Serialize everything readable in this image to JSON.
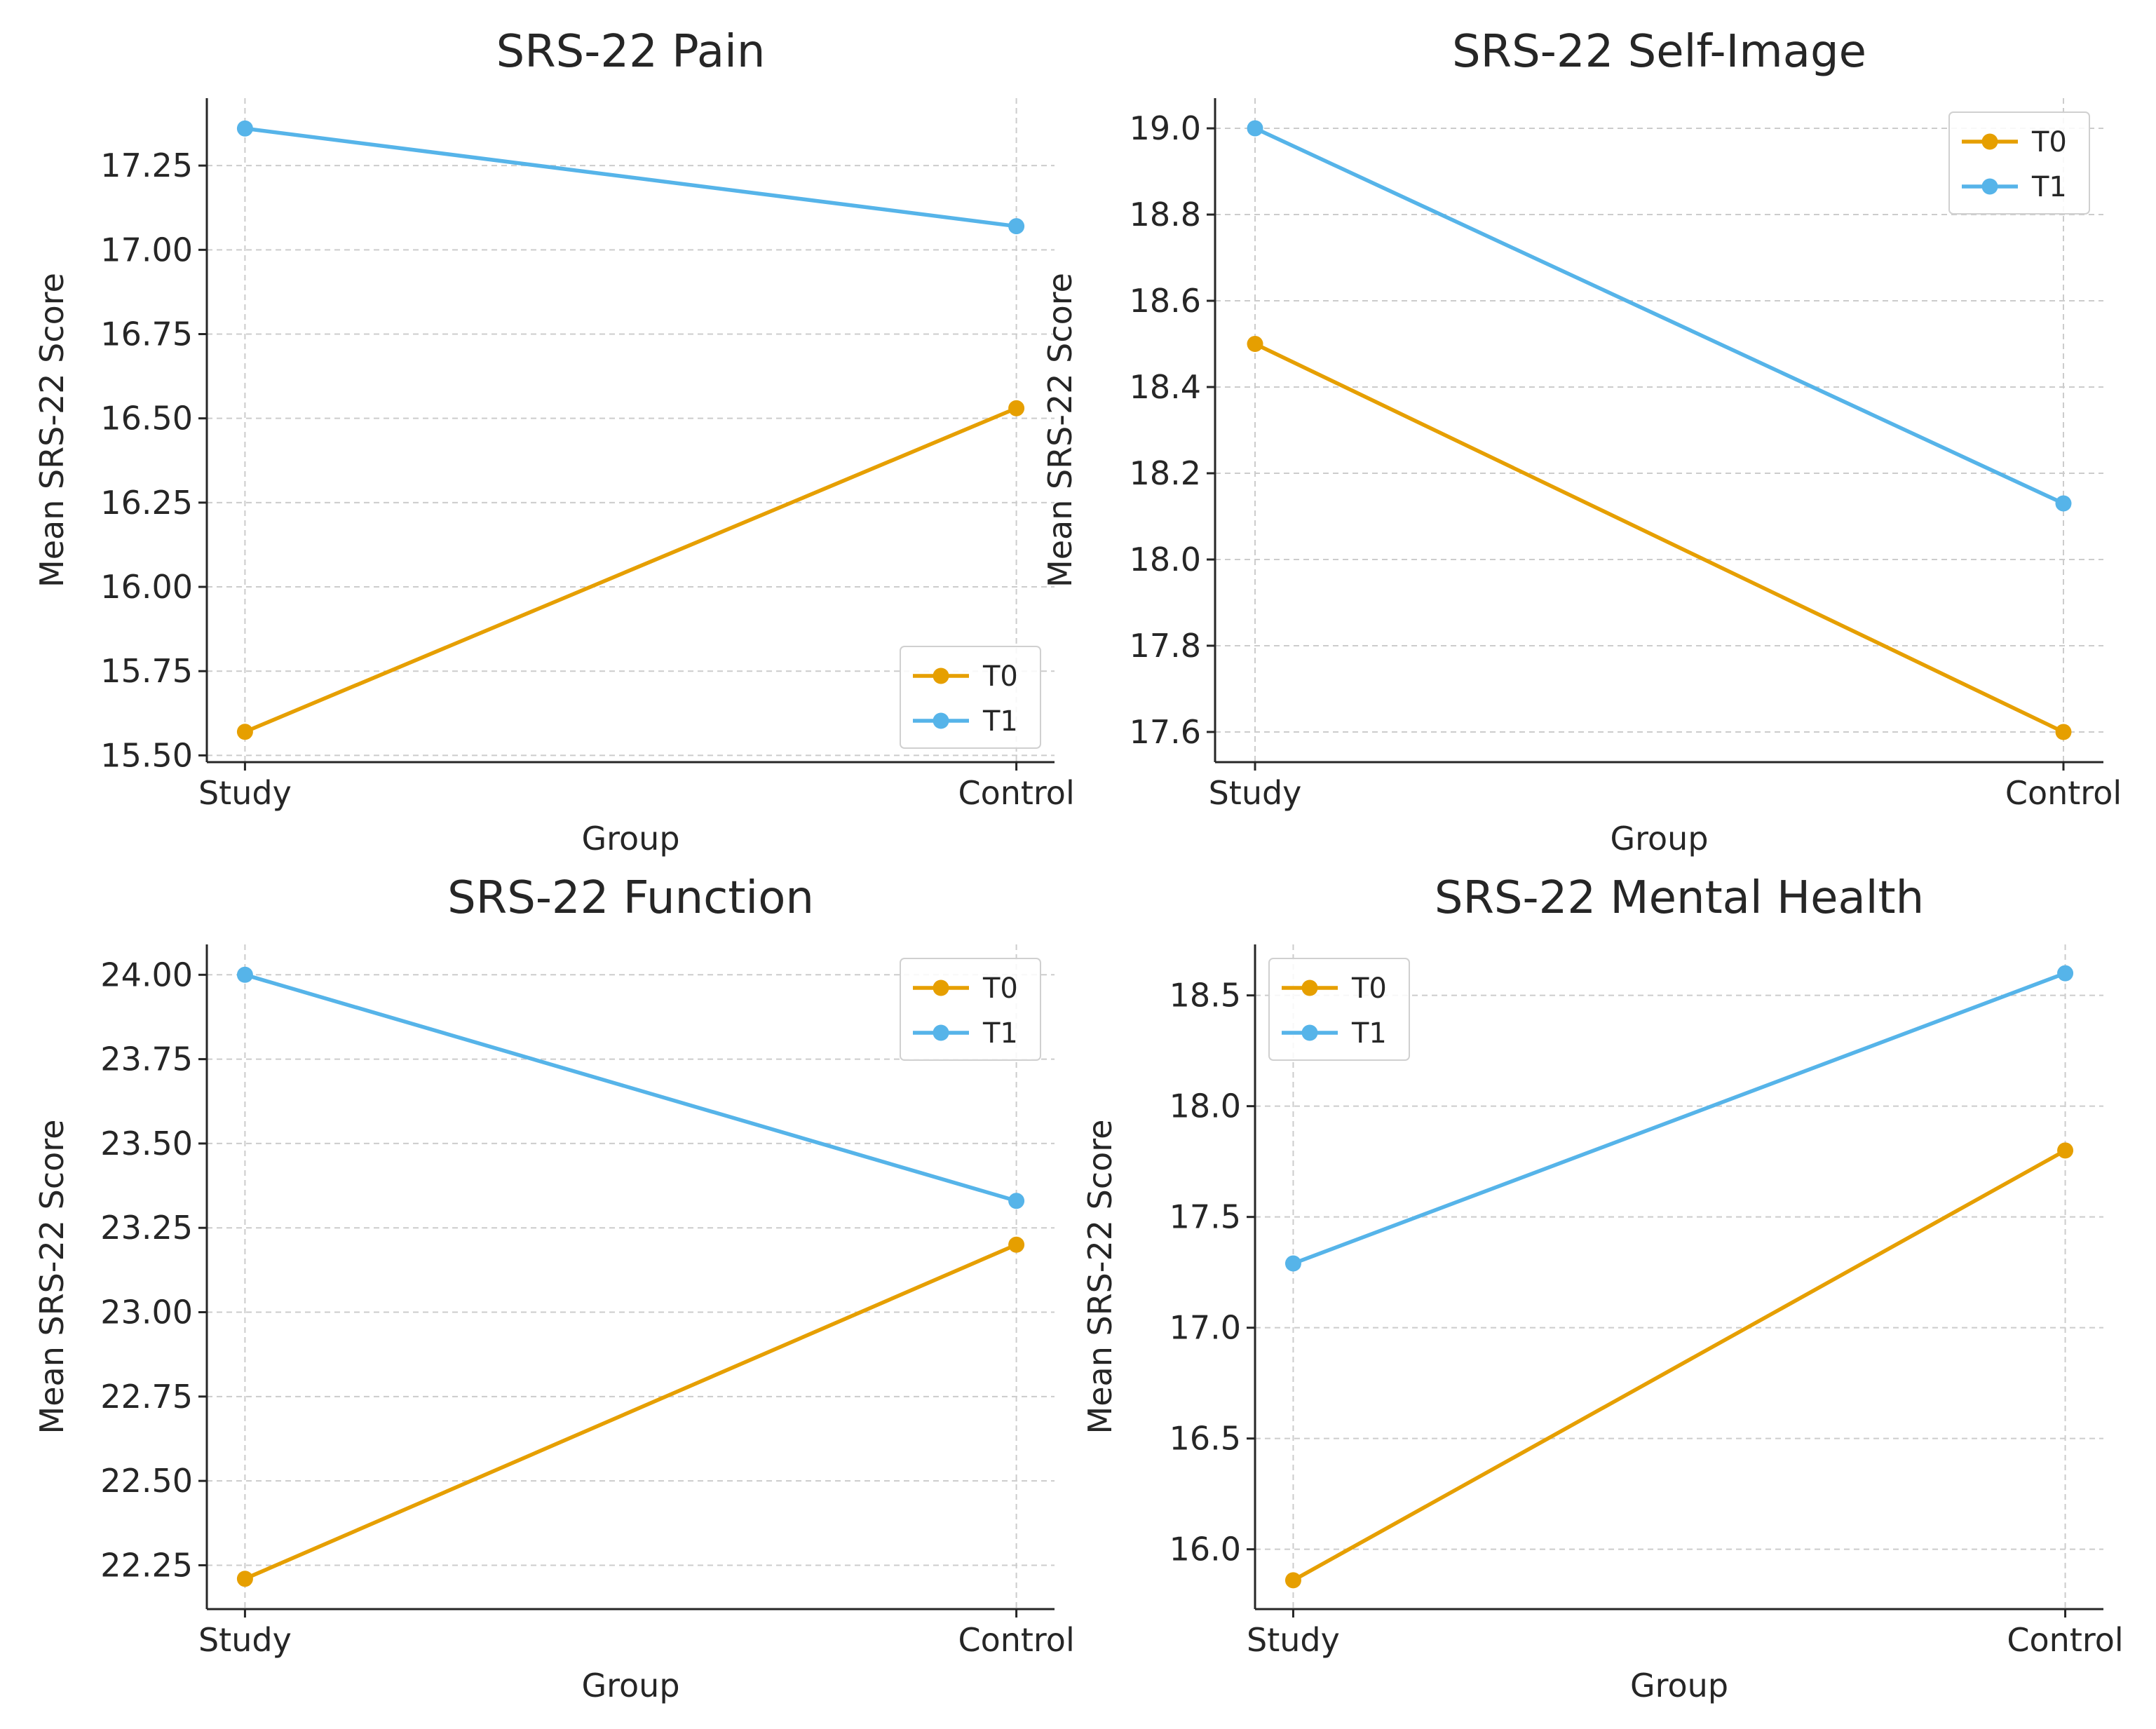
{
  "figure": {
    "colors": {
      "T0": "#E69F00",
      "T1": "#56B4E9",
      "axis": "#262626",
      "grid": "#cccccc"
    }
  },
  "chart_data": [
    {
      "type": "line",
      "title": "SRS-22 Pain",
      "xlabel": "Group",
      "ylabel": "Mean SRS-22 Score",
      "categories": [
        "Study",
        "Control"
      ],
      "series": [
        {
          "name": "T0",
          "values": [
            15.57,
            16.53
          ]
        },
        {
          "name": "T1",
          "values": [
            17.36,
            17.07
          ]
        }
      ],
      "ylim": [
        15.48,
        17.45
      ],
      "yticks": [
        15.5,
        15.75,
        16.0,
        16.25,
        16.5,
        16.75,
        17.0,
        17.25
      ],
      "ytick_labels": [
        "15.50",
        "15.75",
        "16.00",
        "16.25",
        "16.50",
        "16.75",
        "17.00",
        "17.25"
      ],
      "legend_position": "lower-right",
      "grid": true
    },
    {
      "type": "line",
      "title": "SRS-22 Self-Image",
      "xlabel": "Group",
      "ylabel": "Mean SRS-22 Score",
      "categories": [
        "Study",
        "Control"
      ],
      "series": [
        {
          "name": "T0",
          "values": [
            18.5,
            17.6
          ]
        },
        {
          "name": "T1",
          "values": [
            19.0,
            18.13
          ]
        }
      ],
      "ylim": [
        17.53,
        19.07
      ],
      "yticks": [
        17.6,
        17.8,
        18.0,
        18.2,
        18.4,
        18.6,
        18.8,
        19.0
      ],
      "ytick_labels": [
        "17.6",
        "17.8",
        "18.0",
        "18.2",
        "18.4",
        "18.6",
        "18.8",
        "19.0"
      ],
      "legend_position": "upper-right",
      "grid": true
    },
    {
      "type": "line",
      "title": "SRS-22 Function",
      "xlabel": "Group",
      "ylabel": "Mean SRS-22 Score",
      "categories": [
        "Study",
        "Control"
      ],
      "series": [
        {
          "name": "T0",
          "values": [
            22.21,
            23.2
          ]
        },
        {
          "name": "T1",
          "values": [
            24.0,
            23.33
          ]
        }
      ],
      "ylim": [
        22.12,
        24.09
      ],
      "yticks": [
        22.25,
        22.5,
        22.75,
        23.0,
        23.25,
        23.5,
        23.75,
        24.0
      ],
      "ytick_labels": [
        "22.25",
        "22.50",
        "22.75",
        "23.00",
        "23.25",
        "23.50",
        "23.75",
        "24.00"
      ],
      "legend_position": "upper-right",
      "grid": true
    },
    {
      "type": "line",
      "title": "SRS-22 Mental Health",
      "xlabel": "Group",
      "ylabel": "Mean SRS-22 Score",
      "categories": [
        "Study",
        "Control"
      ],
      "series": [
        {
          "name": "T0",
          "values": [
            15.86,
            17.8
          ]
        },
        {
          "name": "T1",
          "values": [
            17.29,
            18.6
          ]
        }
      ],
      "ylim": [
        15.73,
        18.73
      ],
      "yticks": [
        16.0,
        16.5,
        17.0,
        17.5,
        18.0,
        18.5
      ],
      "ytick_labels": [
        "16.0",
        "16.5",
        "17.0",
        "17.5",
        "18.0",
        "18.5"
      ],
      "legend_position": "upper-left",
      "grid": true
    }
  ]
}
